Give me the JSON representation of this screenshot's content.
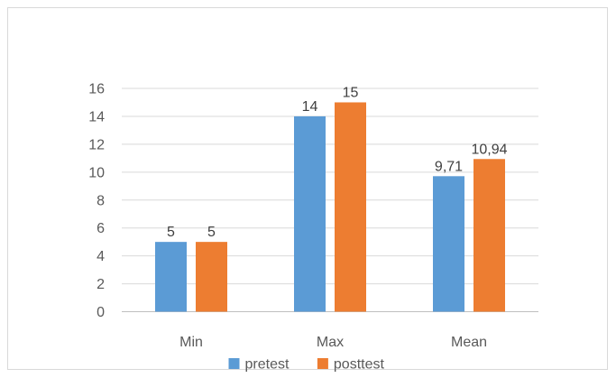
{
  "chart_data": {
    "type": "bar",
    "categories": [
      "Min",
      "Max",
      "Mean"
    ],
    "series": [
      {
        "name": "pretest",
        "values": [
          5,
          14,
          9.71
        ],
        "labels": [
          "5",
          "14",
          "9,71"
        ],
        "color": "#5b9bd5"
      },
      {
        "name": "posttest",
        "values": [
          5,
          15,
          10.94
        ],
        "labels": [
          "5",
          "15",
          "10,94"
        ],
        "color": "#ed7d31"
      }
    ],
    "y_ticks": [
      "0",
      "2",
      "4",
      "6",
      "8",
      "10",
      "12",
      "14",
      "16"
    ],
    "ylim": [
      0,
      16
    ],
    "grid": true,
    "legend_position": "bottom"
  }
}
